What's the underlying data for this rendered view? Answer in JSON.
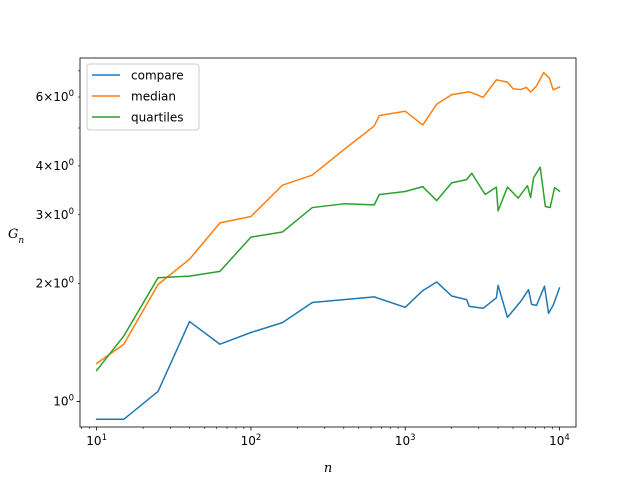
{
  "chart_data": {
    "type": "line",
    "xscale": "log",
    "yscale": "log",
    "xlabel": "n",
    "ylabel": "G_n",
    "xlim": [
      7.8,
      12800
    ],
    "ylim": [
      0.86,
      7.55
    ],
    "grid": false,
    "legend_position": "upper-left",
    "x_ticks": [
      {
        "value": 10,
        "label": "10^1"
      },
      {
        "value": 100,
        "label": "10^2"
      },
      {
        "value": 1000,
        "label": "10^3"
      },
      {
        "value": 10000,
        "label": "10^4"
      }
    ],
    "y_ticks": [
      {
        "value": 1,
        "label": "10^0"
      },
      {
        "value": 2,
        "label": "2×10^0"
      },
      {
        "value": 3,
        "label": "3×10^0"
      },
      {
        "value": 4,
        "label": "4×10^0"
      },
      {
        "value": 6,
        "label": "6×10^0"
      }
    ],
    "series": [
      {
        "name": "compare",
        "color": "#1f77b4",
        "points": [
          [
            10,
            0.9
          ],
          [
            15,
            0.9
          ],
          [
            25,
            1.06
          ],
          [
            40,
            1.6
          ],
          [
            63,
            1.4
          ],
          [
            100,
            1.5
          ],
          [
            160,
            1.59
          ],
          [
            250,
            1.79
          ],
          [
            400,
            1.82
          ],
          [
            630,
            1.85
          ],
          [
            1000,
            1.74
          ],
          [
            1300,
            1.92
          ],
          [
            1600,
            2.02
          ],
          [
            2000,
            1.86
          ],
          [
            2500,
            1.82
          ],
          [
            2600,
            1.75
          ],
          [
            3200,
            1.73
          ],
          [
            3900,
            1.84
          ],
          [
            4000,
            1.98
          ],
          [
            4600,
            1.64
          ],
          [
            5600,
            1.8
          ],
          [
            6300,
            1.93
          ],
          [
            6600,
            1.77
          ],
          [
            7100,
            1.76
          ],
          [
            8000,
            1.97
          ],
          [
            8500,
            1.68
          ],
          [
            9100,
            1.76
          ],
          [
            10000,
            1.95
          ]
        ]
      },
      {
        "name": "median",
        "color": "#ff7f0e",
        "points": [
          [
            10,
            1.25
          ],
          [
            15,
            1.4
          ],
          [
            25,
            1.99
          ],
          [
            40,
            2.31
          ],
          [
            63,
            2.86
          ],
          [
            100,
            2.97
          ],
          [
            160,
            3.57
          ],
          [
            250,
            3.79
          ],
          [
            400,
            4.4
          ],
          [
            630,
            5.06
          ],
          [
            680,
            5.38
          ],
          [
            1000,
            5.52
          ],
          [
            1300,
            5.09
          ],
          [
            1600,
            5.75
          ],
          [
            2000,
            6.08
          ],
          [
            2600,
            6.19
          ],
          [
            3200,
            5.99
          ],
          [
            3900,
            6.64
          ],
          [
            4600,
            6.55
          ],
          [
            5000,
            6.3
          ],
          [
            5600,
            6.27
          ],
          [
            6100,
            6.35
          ],
          [
            6500,
            6.18
          ],
          [
            7100,
            6.4
          ],
          [
            7900,
            6.93
          ],
          [
            8600,
            6.71
          ],
          [
            9100,
            6.26
          ],
          [
            10000,
            6.36
          ]
        ]
      },
      {
        "name": "quartiles",
        "color": "#2ca02c",
        "points": [
          [
            10,
            1.2
          ],
          [
            15,
            1.47
          ],
          [
            25,
            2.07
          ],
          [
            40,
            2.09
          ],
          [
            63,
            2.15
          ],
          [
            100,
            2.63
          ],
          [
            160,
            2.71
          ],
          [
            250,
            3.13
          ],
          [
            400,
            3.2
          ],
          [
            630,
            3.18
          ],
          [
            680,
            3.38
          ],
          [
            1000,
            3.44
          ],
          [
            1300,
            3.54
          ],
          [
            1600,
            3.26
          ],
          [
            2000,
            3.62
          ],
          [
            2500,
            3.69
          ],
          [
            2700,
            3.83
          ],
          [
            3300,
            3.38
          ],
          [
            3900,
            3.53
          ],
          [
            4000,
            3.07
          ],
          [
            4600,
            3.53
          ],
          [
            5400,
            3.31
          ],
          [
            6200,
            3.56
          ],
          [
            6500,
            3.32
          ],
          [
            6800,
            3.73
          ],
          [
            7500,
            3.97
          ],
          [
            8100,
            3.15
          ],
          [
            8700,
            3.13
          ],
          [
            9300,
            3.52
          ],
          [
            10000,
            3.45
          ]
        ]
      }
    ]
  }
}
